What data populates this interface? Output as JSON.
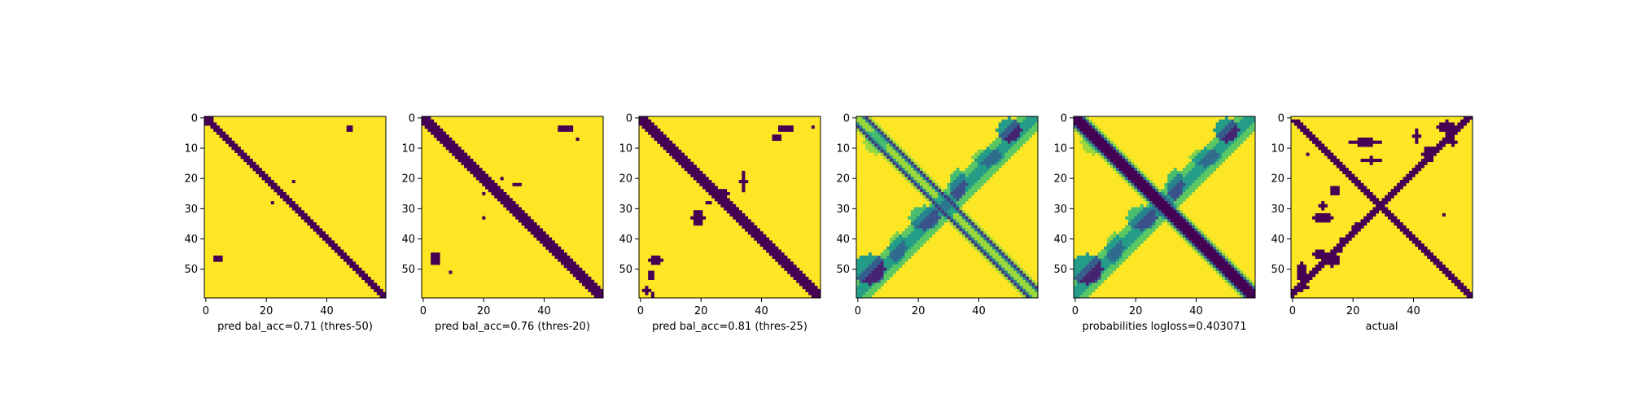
{
  "colors": {
    "low": "#440154",
    "high": "#fde725",
    "axis": "#000000"
  },
  "chart_data": [
    {
      "type": "heatmap",
      "kind": "binary",
      "variant": "pred50",
      "xlabel": "pred bal_acc=0.71 (thres-50)",
      "x_ticks": [
        0,
        20,
        40
      ],
      "y_ticks": [
        0,
        10,
        20,
        30,
        40,
        50
      ],
      "xlim": [
        0,
        59
      ],
      "ylim": [
        59,
        0
      ]
    },
    {
      "type": "heatmap",
      "kind": "binary",
      "variant": "pred20",
      "xlabel": "pred bal_acc=0.76 (thres-20)",
      "x_ticks": [
        0,
        20,
        40
      ],
      "y_ticks": [
        0,
        10,
        20,
        30,
        40,
        50
      ],
      "xlim": [
        0,
        59
      ],
      "ylim": [
        59,
        0
      ]
    },
    {
      "type": "heatmap",
      "kind": "binary",
      "variant": "pred25",
      "xlabel": "pred bal_acc=0.81 (thres-25)",
      "x_ticks": [
        0,
        20,
        40
      ],
      "y_ticks": [
        0,
        10,
        20,
        30,
        40,
        50
      ],
      "xlim": [
        0,
        59
      ],
      "ylim": [
        59,
        0
      ]
    },
    {
      "type": "heatmap",
      "kind": "continuous",
      "variant": "prob_offdiag",
      "xlabel": "",
      "x_ticks": [
        0,
        20,
        40
      ],
      "y_ticks": [
        0,
        10,
        20,
        30,
        40,
        50
      ],
      "xlim": [
        0,
        59
      ],
      "ylim": [
        59,
        0
      ]
    },
    {
      "type": "heatmap",
      "kind": "continuous",
      "variant": "prob_diag",
      "xlabel": "probabilities logloss=0.403071",
      "x_ticks": [
        0,
        20,
        40
      ],
      "y_ticks": [
        0,
        10,
        20,
        30,
        40,
        50
      ],
      "xlim": [
        0,
        59
      ],
      "ylim": [
        59,
        0
      ]
    },
    {
      "type": "heatmap",
      "kind": "binary",
      "variant": "actual",
      "xlabel": "actual",
      "x_ticks": [
        0,
        20,
        40
      ],
      "y_ticks": [
        0,
        10,
        20,
        30,
        40,
        50
      ],
      "xlim": [
        0,
        59
      ],
      "ylim": [
        59,
        0
      ]
    }
  ]
}
